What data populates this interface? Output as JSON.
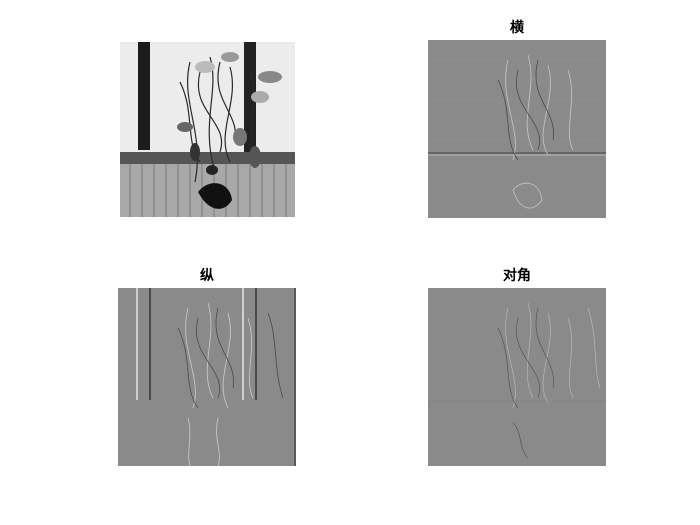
{
  "panels": {
    "original": {
      "title": ""
    },
    "horizontal": {
      "title": "横"
    },
    "vertical": {
      "title": "纵"
    },
    "diagonal": {
      "title": "对角"
    }
  },
  "colors": {
    "background": "#ffffff",
    "detail_gray": "#8a8a8a",
    "dark": "#111111",
    "light": "#f4f4f4"
  }
}
